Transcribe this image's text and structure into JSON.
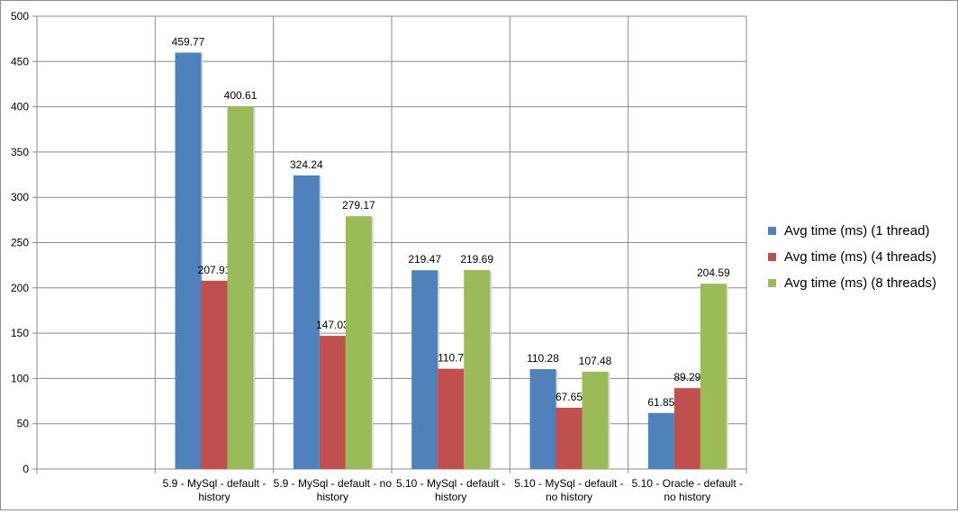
{
  "chart_data": {
    "type": "bar",
    "categories": [
      "",
      "5.9 - MySql - default - history",
      "5.9 - MySql - default - no history",
      "5.10 - MySql - default - history",
      "5.10  - MySql - default - no history",
      "5.10 - Oracle - default - no history"
    ],
    "category_lines": [
      [],
      [
        "5.9 - MySql - default -",
        "history"
      ],
      [
        "5.9 - MySql - default - no",
        "history"
      ],
      [
        "5.10 - MySql - default -",
        "history"
      ],
      [
        "5.10  - MySql - default -",
        "no history"
      ],
      [
        "5.10 - Oracle - default -",
        "no history"
      ]
    ],
    "series": [
      {
        "name": "Avg time (ms) (1 thread)",
        "color": "#4f81bd",
        "values": [
          null,
          459.77,
          324.24,
          219.47,
          110.28,
          61.85
        ]
      },
      {
        "name": "Avg time (ms) (4 threads)",
        "color": "#c0504d",
        "values": [
          null,
          207.91,
          147.03,
          110.7,
          67.65,
          89.29
        ]
      },
      {
        "name": "Avg time (ms) (8 threads)",
        "color": "#9bbb59",
        "values": [
          null,
          400.61,
          279.17,
          219.69,
          107.48,
          204.59
        ]
      }
    ],
    "data_labels": [
      [
        null,
        "459.77",
        "324.24",
        "219.47",
        "110.28",
        "61.85"
      ],
      [
        null,
        "207.91",
        "147.03",
        "110.7",
        "67.65",
        "89.29"
      ],
      [
        null,
        "400.61",
        "279.17",
        "219.69",
        "107.48",
        "204.59"
      ]
    ],
    "yticks": [
      "0",
      "50",
      "100",
      "150",
      "200",
      "250",
      "300",
      "350",
      "400",
      "450",
      "500"
    ],
    "ylim": [
      0,
      500
    ],
    "grid": true,
    "legend_position": "right"
  }
}
